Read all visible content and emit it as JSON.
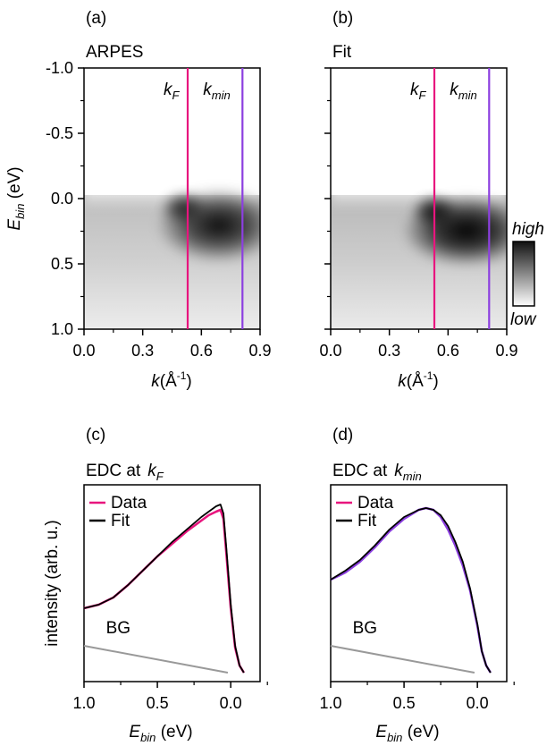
{
  "chart_data": [
    {
      "panel": "(a)",
      "title": "ARPES",
      "type": "heatmap",
      "xlabel": "k",
      "xlabel_unit": "(Å",
      "xlabel_sup": "-1",
      "xlabel_close": ")",
      "ylabel": "E",
      "ylabel_sub": "bin",
      "ylabel_unit": " (eV)",
      "xlim": [
        0.0,
        0.9
      ],
      "ylim": [
        -1.0,
        1.0
      ],
      "xticks": [
        "0.0",
        "0.3",
        "0.6",
        "0.9"
      ],
      "yticks": [
        "-1.0",
        "-0.5",
        "0.0",
        "0.5",
        "1.0"
      ],
      "ytick_values": [
        -1.0,
        -0.5,
        0.0,
        0.5,
        1.0
      ],
      "xtick_values": [
        0.0,
        0.3,
        0.6,
        0.9
      ],
      "vlines": [
        {
          "label": "k",
          "sub": "F",
          "x": 0.53,
          "color": "#e8157e"
        },
        {
          "label": "k",
          "sub": "min",
          "x": 0.81,
          "color": "#8c3fe0"
        }
      ]
    },
    {
      "panel": "(b)",
      "title": "Fit",
      "type": "heatmap",
      "xlabel": "k",
      "xlabel_unit": "(Å",
      "xlabel_sup": "-1",
      "xlabel_close": ")",
      "xlim": [
        0.0,
        0.9
      ],
      "ylim": [
        -1.0,
        1.0
      ],
      "xticks": [
        "0.0",
        "0.3",
        "0.6",
        "0.9"
      ],
      "xtick_values": [
        0.0,
        0.3,
        0.6,
        0.9
      ],
      "vlines": [
        {
          "label": "k",
          "sub": "F",
          "x": 0.53,
          "color": "#e8157e"
        },
        {
          "label": "k",
          "sub": "min",
          "x": 0.81,
          "color": "#8c3fe0"
        }
      ],
      "colorbar": {
        "high": "high",
        "low": "low"
      }
    },
    {
      "panel": "(c)",
      "title": "EDC at",
      "title_k": "k",
      "title_sub": "F",
      "type": "line",
      "xlabel": "E",
      "xlabel_sub": "bin",
      "xlabel_unit": " (eV)",
      "ylabel": "intensity (arb. u.)",
      "xlim": [
        1.0,
        -0.2
      ],
      "xticks": [
        "1.0",
        "0.5",
        "0.0"
      ],
      "xtick_values": [
        1.0,
        0.5,
        0.0
      ],
      "legend": [
        {
          "name": "Data",
          "color": "#e8157e"
        },
        {
          "name": "Fit",
          "color": "#000000"
        }
      ],
      "bg_label": "BG",
      "series": [
        {
          "name": "Data",
          "color": "#e8157e",
          "x": [
            1.0,
            0.9,
            0.8,
            0.7,
            0.6,
            0.5,
            0.4,
            0.3,
            0.2,
            0.15,
            0.1,
            0.07,
            0.05,
            0.03,
            0.0,
            -0.03,
            -0.06,
            -0.09
          ],
          "y": [
            0.36,
            0.38,
            0.42,
            0.49,
            0.57,
            0.65,
            0.72,
            0.79,
            0.85,
            0.88,
            0.9,
            0.91,
            0.86,
            0.67,
            0.36,
            0.14,
            0.04,
            0.0
          ]
        },
        {
          "name": "Fit",
          "color": "#000000",
          "x": [
            1.0,
            0.9,
            0.8,
            0.7,
            0.6,
            0.5,
            0.4,
            0.3,
            0.2,
            0.15,
            0.1,
            0.07,
            0.05,
            0.03,
            0.0,
            -0.03,
            -0.06,
            -0.09
          ],
          "y": [
            0.36,
            0.38,
            0.42,
            0.49,
            0.57,
            0.65,
            0.73,
            0.8,
            0.87,
            0.9,
            0.93,
            0.94,
            0.89,
            0.7,
            0.38,
            0.15,
            0.04,
            0.0
          ]
        },
        {
          "name": "BG",
          "color": "#999999",
          "x": [
            1.0,
            0.02
          ],
          "y": [
            0.15,
            0.0
          ]
        }
      ]
    },
    {
      "panel": "(d)",
      "title": "EDC at",
      "title_k": "k",
      "title_sub": "min",
      "type": "line",
      "xlabel": "E",
      "xlabel_sub": "bin",
      "xlabel_unit": " (eV)",
      "xlim": [
        1.0,
        -0.2
      ],
      "xticks": [
        "1.0",
        "0.5",
        "0.0"
      ],
      "xtick_values": [
        1.0,
        0.5,
        0.0
      ],
      "legend": [
        {
          "name": "Data",
          "color": "#e8157e"
        },
        {
          "name": "Fit",
          "color": "#000000"
        }
      ],
      "bg_label": "BG",
      "series": [
        {
          "name": "Data",
          "color": "#8c3fe0",
          "x": [
            1.0,
            0.9,
            0.8,
            0.7,
            0.6,
            0.5,
            0.4,
            0.35,
            0.3,
            0.25,
            0.2,
            0.15,
            0.1,
            0.05,
            0.0,
            -0.03,
            -0.06,
            -0.09
          ],
          "y": [
            0.52,
            0.56,
            0.62,
            0.7,
            0.79,
            0.86,
            0.91,
            0.92,
            0.91,
            0.87,
            0.8,
            0.71,
            0.6,
            0.46,
            0.26,
            0.12,
            0.04,
            0.0
          ]
        },
        {
          "name": "Fit",
          "color": "#000000",
          "x": [
            1.0,
            0.9,
            0.8,
            0.7,
            0.6,
            0.5,
            0.4,
            0.35,
            0.3,
            0.25,
            0.2,
            0.15,
            0.1,
            0.05,
            0.0,
            -0.03,
            -0.06,
            -0.09
          ],
          "y": [
            0.52,
            0.57,
            0.63,
            0.71,
            0.8,
            0.87,
            0.91,
            0.92,
            0.91,
            0.88,
            0.82,
            0.73,
            0.62,
            0.47,
            0.27,
            0.12,
            0.04,
            0.0
          ]
        },
        {
          "name": "BG",
          "color": "#999999",
          "x": [
            1.0,
            0.02
          ],
          "y": [
            0.15,
            0.0
          ]
        }
      ]
    }
  ]
}
